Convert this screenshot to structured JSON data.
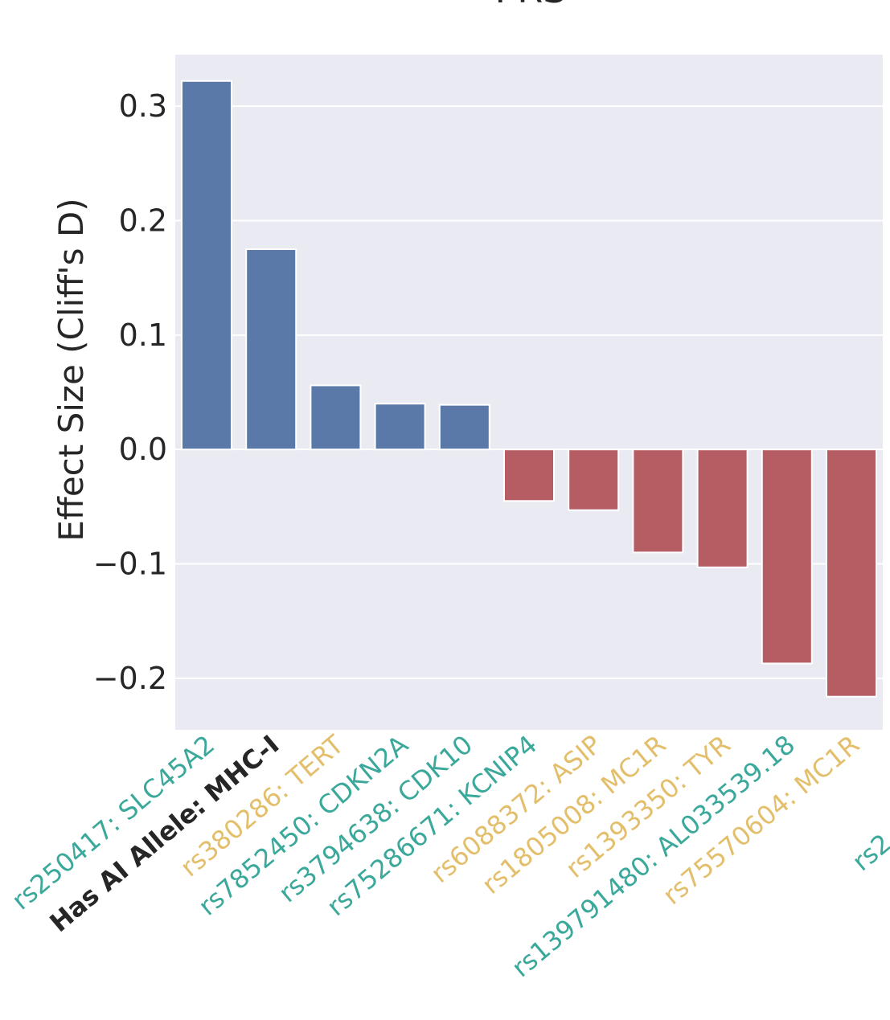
{
  "chart_data": {
    "type": "bar",
    "title": "PRS",
    "xlabel": "",
    "ylabel": "Effect Size (Cliff's D)",
    "ylim": [
      -0.245,
      0.345
    ],
    "yticks": [
      -0.2,
      -0.1,
      0.0,
      0.1,
      0.2,
      0.3
    ],
    "ytick_labels": [
      "−0.2",
      "−0.1",
      "0.0",
      "0.1",
      "0.2",
      "0.3"
    ],
    "grid": true,
    "categories": [
      "rs250417: SLC45A2",
      "Has AI Allele: MHC-I",
      "rs380286: TERT",
      "rs7852450: CDKN2A",
      "rs3794638: CDK10",
      "rs75286671: KCNIP4",
      "rs6088372: ASIP",
      "rs1805008: MC1R",
      "rs1393350: TYR",
      "rs139791480: AL033539.18",
      "rs75570604: MC1R"
    ],
    "values": [
      0.322,
      0.175,
      0.056,
      0.04,
      0.039,
      -0.045,
      -0.053,
      -0.09,
      -0.103,
      -0.187,
      -0.216
    ],
    "bar_colors": [
      "#5a78a8",
      "#5a78a8",
      "#5a78a8",
      "#5a78a8",
      "#5a78a8",
      "#b55d63",
      "#b55d63",
      "#b55d63",
      "#b55d63",
      "#b55d63",
      "#b55d63"
    ],
    "label_colors": [
      "#3aa89a",
      "#262626",
      "#e3bf6c",
      "#3aa89a",
      "#3aa89a",
      "#3aa89a",
      "#e3bf6c",
      "#e3bf6c",
      "#e3bf6c",
      "#3aa89a",
      "#e3bf6c"
    ],
    "label_bold": [
      false,
      true,
      false,
      false,
      false,
      false,
      false,
      false,
      false,
      false,
      false
    ],
    "extra_labels": [
      {
        "text": "rs2",
        "color": "#3aa89a"
      }
    ]
  },
  "colors": {
    "plot_background": "#eaeaf2",
    "grid": "#ffffff"
  }
}
